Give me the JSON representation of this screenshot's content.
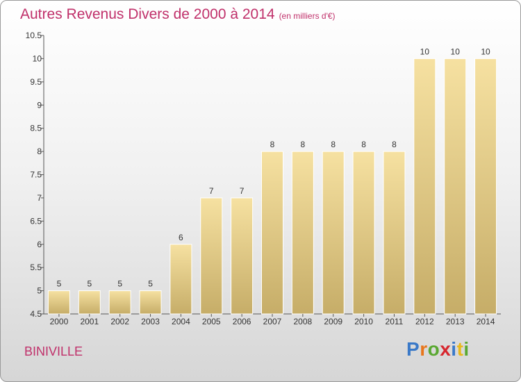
{
  "title": "Autres Revenus Divers de 2000 à 2014",
  "unit": "(en milliers d'€)",
  "commune": "BINIVILLE",
  "brand": "Proxiti",
  "colors": {
    "title": "#c0306a",
    "bar_top": "#f6e1a1",
    "bar_bottom": "#c6ad68",
    "bar_edge": "#ffffff",
    "brand_letters": [
      "#3a79c8",
      "#e8761c",
      "#5aa832",
      "#d7262e",
      "#3a79c8",
      "#e8b91c",
      "#5aa832"
    ]
  },
  "chart_data": {
    "type": "bar",
    "categories": [
      "2000",
      "2001",
      "2002",
      "2003",
      "2004",
      "2005",
      "2006",
      "2007",
      "2008",
      "2009",
      "2010",
      "2011",
      "2012",
      "2013",
      "2014"
    ],
    "values": [
      5,
      5,
      5,
      5,
      6,
      7,
      7,
      8,
      8,
      8,
      8,
      8,
      10,
      10,
      10
    ],
    "title": "Autres Revenus Divers de 2000 à 2014",
    "xlabel": "",
    "ylabel": "",
    "ylim": [
      4.5,
      10.5
    ],
    "yticks": [
      4.5,
      5,
      5.5,
      6,
      6.5,
      7,
      7.5,
      8,
      8.5,
      9,
      9.5,
      10,
      10.5
    ],
    "data_labels": true,
    "grid": false,
    "legend": "none"
  }
}
